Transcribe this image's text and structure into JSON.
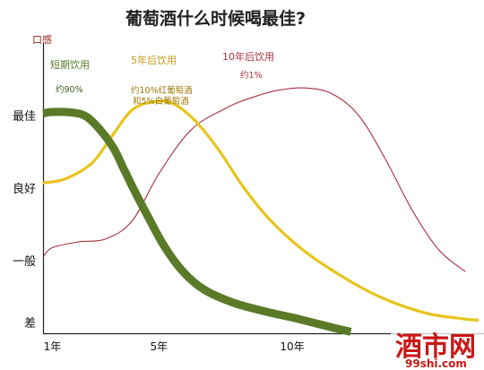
{
  "chart_data": {
    "type": "line",
    "title": "葡萄酒什么时候喝最佳?",
    "ylabel": "口感",
    "y_levels": [
      "最佳",
      "良好",
      "一般",
      "差"
    ],
    "x_ticks": [
      {
        "label": "1年",
        "x": 1
      },
      {
        "label": "5年",
        "x": 5
      },
      {
        "label": "10年",
        "x": 10
      }
    ],
    "xlim": [
      0.65,
      17.2
    ],
    "ylim": [
      0,
      4
    ],
    "grid": false,
    "series": [
      {
        "name": "短期饮用",
        "note": "约90%",
        "color": "#5a7a28",
        "points": [
          [
            0.65,
            3.03
          ],
          [
            1.0,
            3.05
          ],
          [
            1.8,
            3.04
          ],
          [
            2.3,
            2.98
          ],
          [
            2.8,
            2.8
          ],
          [
            3.3,
            2.55
          ],
          [
            3.7,
            2.25
          ],
          [
            4.1,
            1.95
          ],
          [
            4.6,
            1.6
          ],
          [
            5.2,
            1.2
          ],
          [
            5.9,
            0.85
          ],
          [
            6.7,
            0.6
          ],
          [
            7.8,
            0.42
          ],
          [
            9.0,
            0.3
          ],
          [
            10.2,
            0.2
          ],
          [
            11.5,
            0.08
          ],
          [
            12.2,
            0.02
          ]
        ]
      },
      {
        "name": "5年后饮用",
        "note": "约10%红葡萄酒\n和5%白葡萄酒",
        "color": "#e8c41c",
        "points": [
          [
            0.65,
            2.07
          ],
          [
            1.5,
            2.13
          ],
          [
            2.5,
            2.35
          ],
          [
            3.3,
            2.75
          ],
          [
            4.0,
            3.08
          ],
          [
            4.8,
            3.19
          ],
          [
            5.5,
            3.17
          ],
          [
            6.3,
            2.95
          ],
          [
            7.2,
            2.55
          ],
          [
            8.2,
            2.0
          ],
          [
            9.2,
            1.55
          ],
          [
            10.4,
            1.15
          ],
          [
            11.8,
            0.8
          ],
          [
            13.3,
            0.5
          ],
          [
            15.0,
            0.28
          ],
          [
            16.4,
            0.2
          ],
          [
            17.0,
            0.18
          ]
        ]
      },
      {
        "name": "10年后饮用",
        "note": "约1%",
        "color": "#a83040",
        "points": [
          [
            0.65,
            1.05
          ],
          [
            1.0,
            1.18
          ],
          [
            2.0,
            1.26
          ],
          [
            3.0,
            1.3
          ],
          [
            4.0,
            1.55
          ],
          [
            5.0,
            2.2
          ],
          [
            6.2,
            2.8
          ],
          [
            7.5,
            3.1
          ],
          [
            8.5,
            3.25
          ],
          [
            9.5,
            3.35
          ],
          [
            10.5,
            3.38
          ],
          [
            11.5,
            3.3
          ],
          [
            12.5,
            3.0
          ],
          [
            13.5,
            2.4
          ],
          [
            14.5,
            1.7
          ],
          [
            15.5,
            1.15
          ],
          [
            16.5,
            0.85
          ]
        ]
      }
    ]
  },
  "watermark": {
    "text": "酒市网",
    "url": "99shi.com"
  },
  "colors": {
    "axis": "#222222",
    "ylabel": "#9a1a1a",
    "watermark": "#c81818"
  }
}
